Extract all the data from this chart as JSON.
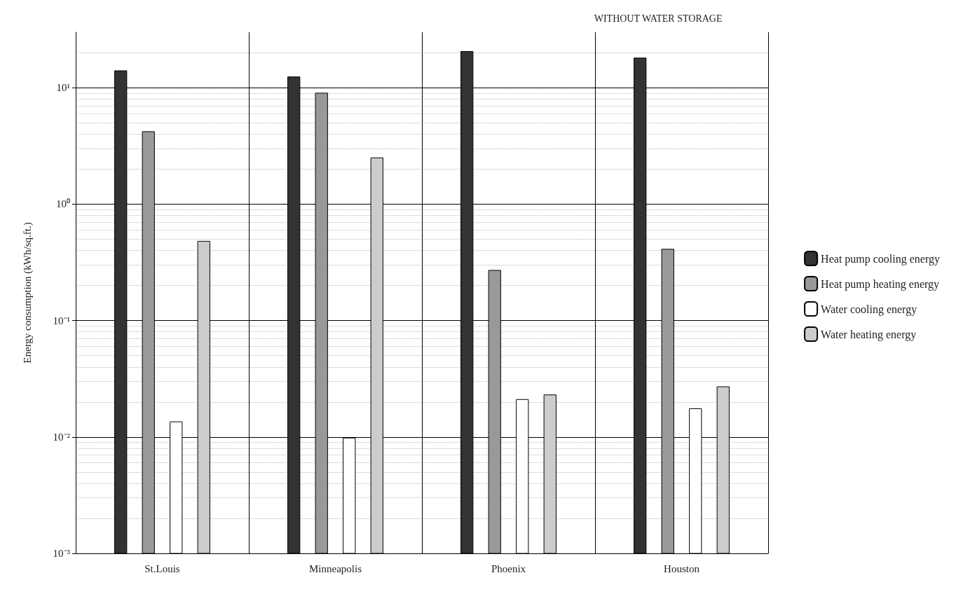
{
  "chart_data": {
    "type": "bar",
    "title": "WITHOUT WATER STORAGE",
    "ylabel": "Energy consumption (kWh/sq.ft.)",
    "categories": [
      "St.Louis",
      "Minneapolis",
      "Phoenix",
      "Houston"
    ],
    "series": [
      {
        "name": "Heat pump cooling energy",
        "color": "#333333",
        "values": [
          14,
          12.4,
          20.5,
          18
        ]
      },
      {
        "name": "Heat pump heating energy",
        "color": "#999999",
        "values": [
          4.2,
          9,
          0.27,
          0.41
        ]
      },
      {
        "name": "Water cooling energy",
        "color": "#ffffff",
        "values": [
          0.0135,
          0.0098,
          0.021,
          0.0175
        ]
      },
      {
        "name": "Water heating energy",
        "color": "#cccccc",
        "values": [
          0.48,
          2.5,
          0.023,
          0.027
        ]
      }
    ],
    "log": "y",
    "ylim": [
      0.001,
      30
    ],
    "yticks": [
      {
        "value": 0.001,
        "label": "10⁻³"
      },
      {
        "value": 0.01,
        "label": "10⁻²"
      },
      {
        "value": 0.1,
        "label": "10⁻¹"
      },
      {
        "value": 1,
        "label": "10⁰"
      },
      {
        "value": 10,
        "label": "10¹"
      }
    ],
    "grid": true,
    "legend": "right"
  }
}
